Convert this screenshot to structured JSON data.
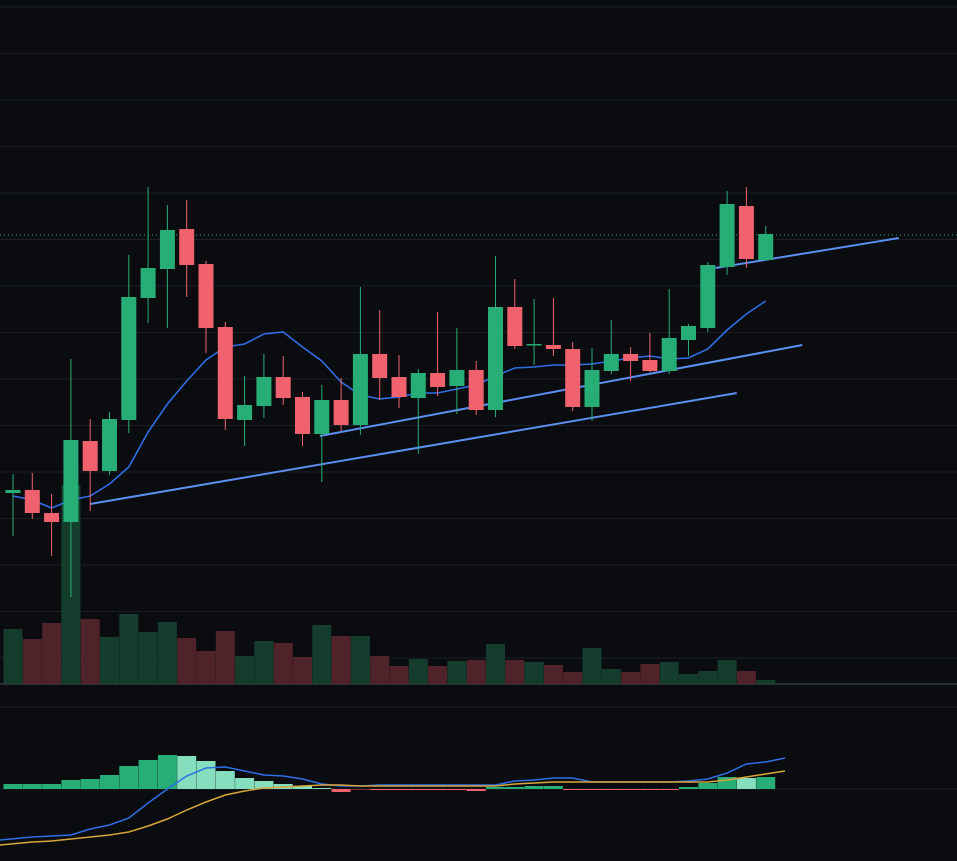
{
  "chart_data": {
    "type": "candlestick",
    "title": "",
    "xlabel": "",
    "ylabel": "",
    "grid": true,
    "price_ylim": [
      15,
      700
    ],
    "colors": {
      "up": "#26a69a",
      "up_body": "#27ae76",
      "down": "#f0626e",
      "ma": "#2f6fe6",
      "trend": "#5b8ff0",
      "signal": "#d9a53a",
      "vol_up": "#153d2d",
      "vol_down": "#4f2329",
      "hist_up": "#27ae76",
      "hist_up_light": "#85dfbf",
      "hist_down": "#f0626e",
      "hist_down_light": "#7a2e35",
      "last_price": "#27ae76",
      "background": "#0a0c0f",
      "gridline": "#1b1e23"
    },
    "candles": [
      {
        "o": 207,
        "c": 210,
        "h": 226,
        "l": 164
      },
      {
        "o": 210,
        "c": 187,
        "h": 227,
        "l": 181
      },
      {
        "o": 187,
        "c": 178,
        "h": 206,
        "l": 144
      },
      {
        "o": 178,
        "c": 260,
        "h": 341,
        "l": 103
      },
      {
        "o": 259,
        "c": 229,
        "h": 281,
        "l": 189
      },
      {
        "o": 229,
        "c": 281,
        "h": 288,
        "l": 225
      },
      {
        "o": 280,
        "c": 403,
        "h": 445,
        "l": 267
      },
      {
        "o": 402,
        "c": 432,
        "h": 513,
        "l": 377
      },
      {
        "o": 431,
        "c": 470,
        "h": 495,
        "l": 372
      },
      {
        "o": 471,
        "c": 435,
        "h": 500,
        "l": 403
      },
      {
        "o": 436,
        "c": 372,
        "h": 439,
        "l": 347
      },
      {
        "o": 373,
        "c": 281,
        "h": 378,
        "l": 270
      },
      {
        "o": 280,
        "c": 295,
        "h": 324,
        "l": 254
      },
      {
        "o": 294,
        "c": 323,
        "h": 346,
        "l": 282
      },
      {
        "o": 323,
        "c": 302,
        "h": 344,
        "l": 295
      },
      {
        "o": 303,
        "c": 266,
        "h": 308,
        "l": 254
      },
      {
        "o": 266,
        "c": 300,
        "h": 315,
        "l": 218
      },
      {
        "o": 300,
        "c": 275,
        "h": 322,
        "l": 269
      },
      {
        "o": 275,
        "c": 346,
        "h": 413,
        "l": 265
      },
      {
        "o": 346,
        "c": 322,
        "h": 390,
        "l": 300
      },
      {
        "o": 323,
        "c": 303,
        "h": 345,
        "l": 292
      },
      {
        "o": 302,
        "c": 327,
        "h": 331,
        "l": 246
      },
      {
        "o": 327,
        "c": 313,
        "h": 388,
        "l": 304
      },
      {
        "o": 314,
        "c": 330,
        "h": 372,
        "l": 286
      },
      {
        "o": 330,
        "c": 290,
        "h": 339,
        "l": 285
      },
      {
        "o": 290,
        "c": 393,
        "h": 444,
        "l": 283
      },
      {
        "o": 393,
        "c": 354,
        "h": 421,
        "l": 351
      },
      {
        "o": 355,
        "c": 356,
        "h": 401,
        "l": 335
      },
      {
        "o": 355,
        "c": 351,
        "h": 402,
        "l": 344
      },
      {
        "o": 351,
        "c": 293,
        "h": 358,
        "l": 289
      },
      {
        "o": 293,
        "c": 330,
        "h": 352,
        "l": 279
      },
      {
        "o": 329,
        "c": 346,
        "h": 380,
        "l": 326
      },
      {
        "o": 346,
        "c": 339,
        "h": 353,
        "l": 319
      },
      {
        "o": 340,
        "c": 329,
        "h": 367,
        "l": 328
      },
      {
        "o": 329,
        "c": 362,
        "h": 411,
        "l": 326
      },
      {
        "o": 360,
        "c": 374,
        "h": 376,
        "l": 344
      },
      {
        "o": 372,
        "c": 435,
        "h": 438,
        "l": 368
      },
      {
        "o": 433,
        "c": 496,
        "h": 509,
        "l": 425
      },
      {
        "o": 494,
        "c": 441,
        "h": 513,
        "l": 432
      },
      {
        "o": 440,
        "c": 466,
        "h": 474,
        "l": 439
      }
    ],
    "moving_average": [
      204,
      200,
      192,
      200,
      204,
      216,
      233,
      268,
      296,
      319,
      340,
      353,
      356,
      366,
      368,
      353,
      339,
      318,
      305,
      301,
      303,
      307,
      307,
      311,
      315,
      324,
      332,
      333,
      335,
      335,
      336,
      339,
      342,
      344,
      341,
      342,
      351,
      370,
      386,
      399
    ],
    "last_price": 465,
    "trendlines": [
      {
        "from": {
          "index": 4,
          "price": 196
        },
        "to": {
          "index": 37.5,
          "price": 307
        }
      },
      {
        "from": {
          "index": 15.9,
          "price": 264
        },
        "to": {
          "index": 40.9,
          "price": 355
        }
      },
      {
        "from": {
          "index": 36.4,
          "price": 432
        },
        "to": {
          "index": 45.9,
          "price": 462
        }
      }
    ],
    "volume": [
      55,
      45,
      61,
      199,
      65,
      47,
      70,
      52,
      62,
      46,
      33,
      53,
      28,
      43,
      41,
      27,
      59,
      48,
      48,
      28,
      18,
      25,
      18,
      23,
      24,
      40,
      24,
      22,
      19,
      12,
      36,
      15,
      12,
      20,
      22,
      10,
      13,
      24,
      13,
      4
    ],
    "macd": {
      "histogram": [
        5,
        5,
        5,
        9,
        10,
        14,
        23,
        29,
        34,
        33,
        28,
        18,
        11,
        8,
        5,
        3,
        0,
        -3,
        -1,
        -1,
        -1,
        -1,
        -1,
        -1,
        -2,
        2,
        2,
        3,
        3,
        -1,
        -1,
        -1,
        -1,
        -1,
        -1,
        2,
        6,
        12,
        11,
        12
      ],
      "macd_line": [
        -48,
        -47,
        -46,
        -40,
        -36,
        -29,
        -14,
        0,
        13,
        21,
        22,
        18,
        14,
        13,
        10,
        5,
        3,
        3,
        4,
        4,
        4,
        4,
        4,
        4,
        4,
        8,
        9,
        11,
        11,
        7,
        7,
        7,
        7,
        7,
        8,
        10,
        16,
        25,
        27,
        31
      ],
      "signal_line": [
        -53,
        -52,
        -50,
        -48,
        -46,
        -43,
        -37,
        -30,
        -21,
        -13,
        -6,
        -2,
        1,
        2,
        3,
        4,
        4,
        3,
        3,
        3,
        3,
        3,
        3,
        3,
        3,
        5,
        6,
        7,
        7,
        7,
        7,
        7,
        7,
        7,
        7,
        7,
        9,
        12,
        15,
        18
      ]
    }
  }
}
